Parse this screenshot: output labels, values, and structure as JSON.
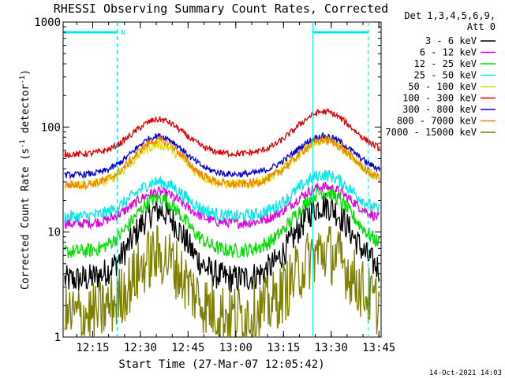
{
  "chart_data": {
    "type": "line",
    "title": "RHESSI Observing Summary Count Rates, Corrected",
    "xlabel": "Start Time (27-Mar-07 12:05:42)",
    "ylabel_main": "Corrected Count Rate (s",
    "ylabel_sup1": "-1",
    "ylabel_mid": " detector",
    "ylabel_sup2": "-1",
    "ylabel_end": ")",
    "ylabel": "Corrected Count Rate (s-1 detector-1)",
    "y_scale": "log",
    "ylim": [
      1,
      1000
    ],
    "x_range_minutes": [
      0,
      100
    ],
    "x_ticks": [
      {
        "label": "12:15",
        "t": 9.3
      },
      {
        "label": "12:30",
        "t": 24.3
      },
      {
        "label": "12:45",
        "t": 39.3
      },
      {
        "label": "13:00",
        "t": 54.3
      },
      {
        "label": "13:15",
        "t": 69.3
      },
      {
        "label": "13:30",
        "t": 84.3
      },
      {
        "label": "13:45",
        "t": 99.3
      }
    ],
    "y_ticks": [
      {
        "label": "1",
        "v": 1
      },
      {
        "label": "10",
        "v": 10
      },
      {
        "label": "100",
        "v": 100
      },
      {
        "label": "1000",
        "v": 1000
      }
    ],
    "legend_header": [
      "Det 1,3,4,5,6,9,",
      "Att 0"
    ],
    "legend_position": "right",
    "night_flag_label": "N",
    "night_intervals_minutes": [
      [
        0,
        17
      ],
      [
        78.5,
        96
      ]
    ],
    "footer_date": "14-Oct-2021 14:03",
    "series": [
      {
        "name": "3 - 6 keV",
        "color": "#000000",
        "base": 3.5,
        "peak1": 16,
        "peak2": 18,
        "noise": 0.14
      },
      {
        "name": "6 - 12 keV",
        "color": "#e000e0",
        "base": 12,
        "peak1": 24,
        "peak2": 27,
        "noise": 0.05
      },
      {
        "name": "12 - 25 keV",
        "color": "#00e000",
        "base": 6.5,
        "peak1": 21,
        "peak2": 24,
        "noise": 0.07
      },
      {
        "name": "25 - 50 keV",
        "color": "#00e8e8",
        "base": 14,
        "peak1": 30,
        "peak2": 35,
        "noise": 0.06
      },
      {
        "name": "50 - 100 keV",
        "color": "#e0e000",
        "base": 28,
        "peak1": 68,
        "peak2": 75,
        "noise": 0.05
      },
      {
        "name": "100 - 300 keV",
        "color": "#e00000",
        "base": 55,
        "peak1": 118,
        "peak2": 140,
        "noise": 0.03
      },
      {
        "name": "300 - 800 keV",
        "color": "#0000e0",
        "base": 35,
        "peak1": 82,
        "peak2": 82,
        "noise": 0.03
      },
      {
        "name": "800 - 7000 keV",
        "color": "#f08000",
        "base": 28,
        "peak1": 75,
        "peak2": 75,
        "noise": 0.04
      },
      {
        "name": "7000 - 15000 keV",
        "color": "#808000",
        "base": 1.6,
        "peak1": 6,
        "peak2": 6.5,
        "noise": 0.3
      }
    ]
  }
}
